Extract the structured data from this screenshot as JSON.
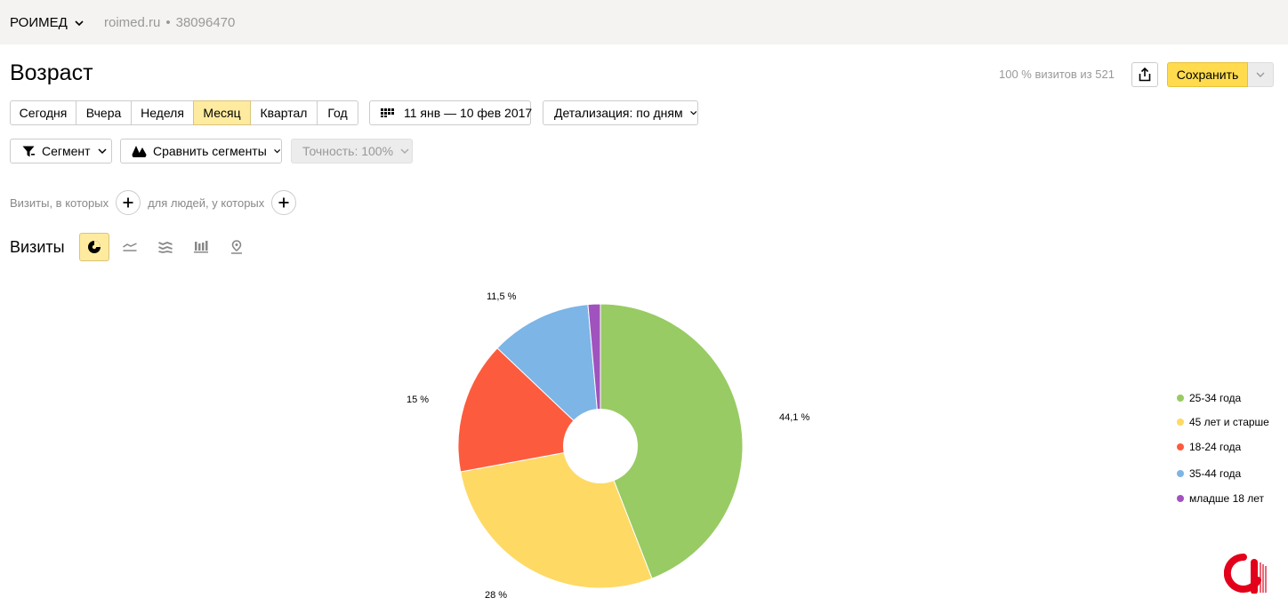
{
  "counter": {
    "name": "РОИМЕД",
    "site": "roimed.ru",
    "separator": "•",
    "id": "38096470"
  },
  "page": {
    "title": "Возраст",
    "visits_info": "100 % визитов из 521"
  },
  "toolbar": {
    "save_label": "Сохранить"
  },
  "periods": [
    {
      "label": "Сегодня",
      "active": false
    },
    {
      "label": "Вчера",
      "active": false
    },
    {
      "label": "Неделя",
      "active": false
    },
    {
      "label": "Месяц",
      "active": true
    },
    {
      "label": "Квартал",
      "active": false
    },
    {
      "label": "Год",
      "active": false
    }
  ],
  "date_range": {
    "label": "11 янв — 10 фев 2017"
  },
  "detail": {
    "label": "Детализация: по дням"
  },
  "segment": {
    "label": "Сегмент"
  },
  "compare": {
    "label": "Сравнить сегменты"
  },
  "accuracy": {
    "label": "Точность: 100%"
  },
  "filters": {
    "visits_label": "Визиты, в которых",
    "people_label": "для людей, у которых"
  },
  "chart_header": {
    "title": "Визиты"
  },
  "view_icons": [
    "pie-chart-icon",
    "line-chart-icon",
    "area-chart-icon",
    "bar-chart-icon",
    "map-icon"
  ],
  "colors": {
    "accent": "#ffdb4d",
    "active_tab": "#ffeba0",
    "topbar": "#f4f3f1"
  },
  "chart_data": {
    "type": "pie",
    "donut": true,
    "legend_position": "right",
    "slices": [
      {
        "name": "25-34 года",
        "value": 44.1,
        "label": "44,1 %",
        "color": "#98cb63"
      },
      {
        "name": "45 лет и старше",
        "value": 28,
        "label": "28 %",
        "color": "#fed964"
      },
      {
        "name": "18-24 года",
        "value": 15,
        "label": "15 %",
        "color": "#fd5b3e"
      },
      {
        "name": "35-44 года",
        "value": 11.5,
        "label": "11,5 %",
        "color": "#7cb5e6"
      },
      {
        "name": "младше 18 лет",
        "value": 1.4,
        "label": "",
        "color": "#a052be"
      }
    ]
  }
}
